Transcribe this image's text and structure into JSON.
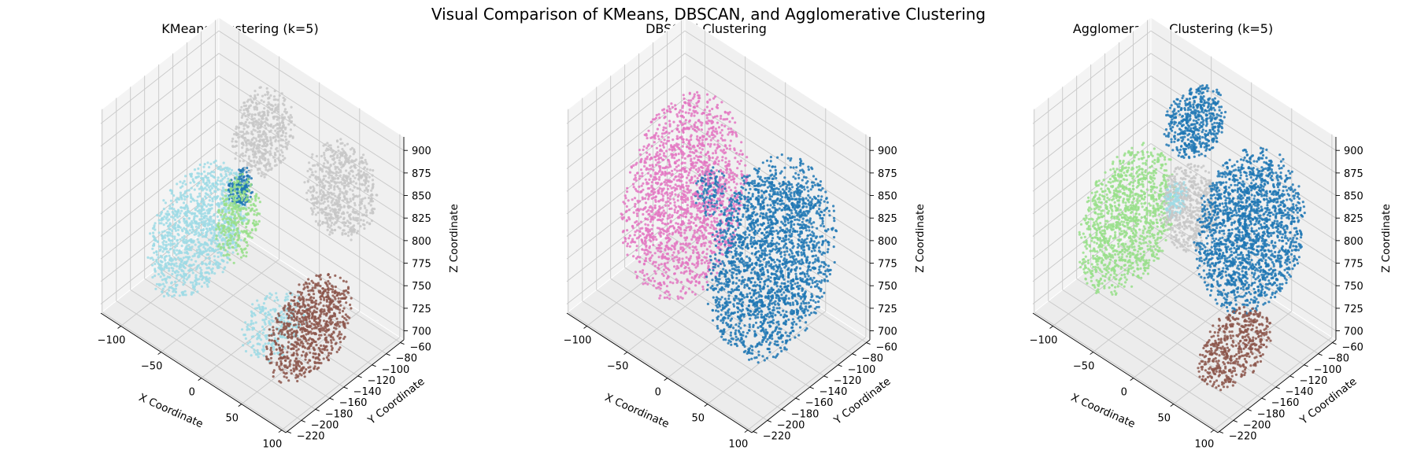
{
  "suptitle": "Visual Comparison of KMeans, DBSCAN, and Agglomerative Clustering",
  "chart_data": [
    {
      "type": "scatter",
      "projection": "3d",
      "title": "KMeans Clustering (k=5)",
      "xlabel": "X Coordinate",
      "ylabel": "Y Coordinate",
      "zlabel": "Z Coordinate",
      "xticks": [
        -100,
        -50,
        0,
        50,
        100
      ],
      "yticks": [
        -220,
        -200,
        -180,
        -160,
        -140,
        -120,
        -100,
        -80,
        -60
      ],
      "zticks": [
        700,
        725,
        750,
        775,
        800,
        825,
        850,
        875,
        900
      ],
      "xlim": [
        -125,
        105
      ],
      "ylim": [
        -222,
        -55
      ],
      "zlim": [
        690,
        915
      ],
      "grid": true,
      "series": [
        {
          "color": "#9edae5",
          "blobs": [
            {
              "x": [
                -100,
                -45
              ],
              "y": [
                -210,
                -80
              ],
              "z": [
                700,
                830
              ],
              "n": 1200
            },
            {
              "x": [
                10,
                60
              ],
              "y": [
                -200,
                -120
              ],
              "z": [
                700,
                760
              ],
              "n": 250
            }
          ]
        },
        {
          "color": "#c7c7c7",
          "blobs": [
            {
              "x": [
                -60,
                -10
              ],
              "y": [
                -130,
                -60
              ],
              "z": [
                820,
                910
              ],
              "n": 500
            },
            {
              "x": [
                20,
                95
              ],
              "y": [
                -120,
                -60
              ],
              "z": [
                800,
                900
              ],
              "n": 650
            }
          ]
        },
        {
          "color": "#98df8a",
          "blobs": [
            {
              "x": [
                -45,
                -25
              ],
              "y": [
                -160,
                -100
              ],
              "z": [
                740,
                840
              ],
              "n": 300
            }
          ]
        },
        {
          "color": "#8c564b",
          "blobs": [
            {
              "x": [
                55,
                100
              ],
              "y": [
                -215,
                -100
              ],
              "z": [
                700,
                800
              ],
              "n": 800
            }
          ]
        },
        {
          "color": "#1f77b4",
          "blobs": [
            {
              "x": [
                -55,
                -35
              ],
              "y": [
                -130,
                -100
              ],
              "z": [
                790,
                830
              ],
              "n": 180
            }
          ]
        }
      ]
    },
    {
      "type": "scatter",
      "projection": "3d",
      "title": "DBSCAN Clustering",
      "xlabel": "X Coordinate",
      "ylabel": "Y Coordinate",
      "zlabel": "Z Coordinate",
      "xticks": [
        -100,
        -50,
        0,
        50,
        100
      ],
      "yticks": [
        -220,
        -200,
        -180,
        -160,
        -140,
        -120,
        -100,
        -80,
        -60
      ],
      "zticks": [
        700,
        725,
        750,
        775,
        800,
        825,
        850,
        875,
        900
      ],
      "xlim": [
        -125,
        105
      ],
      "ylim": [
        -222,
        -55
      ],
      "zlim": [
        690,
        915
      ],
      "grid": true,
      "series": [
        {
          "color": "#e377c2",
          "blobs": [
            {
              "x": [
                -100,
                -10
              ],
              "y": [
                -210,
                -60
              ],
              "z": [
                700,
                910
              ],
              "n": 1800
            }
          ]
        },
        {
          "color": "#1f77b4",
          "blobs": [
            {
              "x": [
                10,
                100
              ],
              "y": [
                -215,
                -60
              ],
              "z": [
                700,
                905
              ],
              "n": 2200
            },
            {
              "x": [
                -55,
                -30
              ],
              "y": [
                -130,
                -95
              ],
              "z": [
                780,
                830
              ],
              "n": 120
            }
          ]
        }
      ]
    },
    {
      "type": "scatter",
      "projection": "3d",
      "title": "Agglomerative Clustering (k=5)",
      "xlabel": "X Coordinate",
      "ylabel": "Y Coordinate",
      "zlabel": "Z Coordinate",
      "xticks": [
        -100,
        -50,
        0,
        50,
        100
      ],
      "yticks": [
        -220,
        -200,
        -180,
        -160,
        -140,
        -120,
        -100,
        -80,
        -60
      ],
      "zticks": [
        700,
        725,
        750,
        775,
        800,
        825,
        850,
        875,
        900
      ],
      "xlim": [
        -125,
        105
      ],
      "ylim": [
        -222,
        -55
      ],
      "zlim": [
        690,
        915
      ],
      "grid": true,
      "series": [
        {
          "color": "#98df8a",
          "blobs": [
            {
              "x": [
                -100,
                -50
              ],
              "y": [
                -210,
                -80
              ],
              "z": [
                700,
                850
              ],
              "n": 1200
            }
          ]
        },
        {
          "color": "#c7c7c7",
          "blobs": [
            {
              "x": [
                -45,
                5
              ],
              "y": [
                -150,
                -90
              ],
              "z": [
                760,
                850
              ],
              "n": 500
            }
          ]
        },
        {
          "color": "#9edae5",
          "blobs": [
            {
              "x": [
                -40,
                -25
              ],
              "y": [
                -140,
                -110
              ],
              "z": [
                790,
                830
              ],
              "n": 120
            }
          ]
        },
        {
          "color": "#1f77b4",
          "blobs": [
            {
              "x": [
                -60,
                -10
              ],
              "y": [
                -130,
                -60
              ],
              "z": [
                840,
                910
              ],
              "n": 500
            },
            {
              "x": [
                10,
                100
              ],
              "y": [
                -180,
                -60
              ],
              "z": [
                740,
                905
              ],
              "n": 1800
            }
          ]
        },
        {
          "color": "#8c564b",
          "blobs": [
            {
              "x": [
                55,
                100
              ],
              "y": [
                -215,
                -120
              ],
              "z": [
                700,
                770
              ],
              "n": 500
            }
          ]
        }
      ]
    }
  ]
}
